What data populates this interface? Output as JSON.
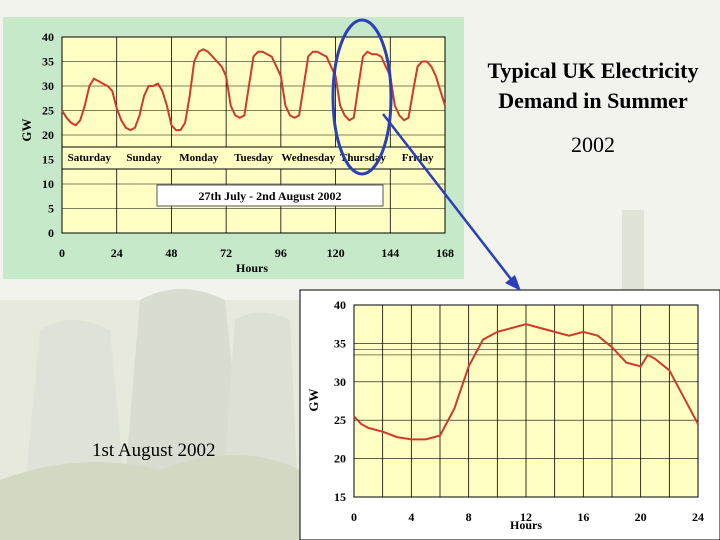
{
  "slide": {
    "title_line1": "Typical UK Electricity",
    "title_line2": "Demand in Summer",
    "year": "2002",
    "day_label": "1st August 2002"
  },
  "colors": {
    "plot_bg": "#ffffc4",
    "panel_bg": "#c6eac9",
    "line": "#d03a2a",
    "highlight": "#2b3fb8"
  },
  "chart_data": [
    {
      "type": "line",
      "title": "",
      "xlabel": "Hours",
      "ylabel": "GW",
      "xlim": [
        0,
        168
      ],
      "ylim": [
        0,
        40
      ],
      "xticks": [
        0,
        24,
        48,
        72,
        96,
        120,
        144,
        168
      ],
      "yticks": [
        0,
        5,
        10,
        15,
        20,
        25,
        30,
        35,
        40
      ],
      "grid": true,
      "day_labels": [
        "Saturday",
        "Sunday",
        "Monday",
        "Tuesday",
        "Wednesday",
        "Thursday",
        "Friday"
      ],
      "annotation": "27th July - 2nd August 2002",
      "series": [
        {
          "x": [
            0,
            2,
            4,
            6,
            8,
            10,
            12,
            14,
            16,
            18,
            20,
            22,
            24,
            26,
            28,
            30,
            32,
            34,
            36,
            38,
            40,
            42,
            44,
            46,
            48,
            50,
            52,
            54,
            56,
            58,
            60,
            62,
            64,
            66,
            68,
            70,
            72,
            74,
            76,
            78,
            80,
            82,
            84,
            86,
            88,
            90,
            92,
            94,
            96,
            98,
            100,
            102,
            104,
            106,
            108,
            110,
            112,
            114,
            116,
            118,
            120,
            122,
            124,
            126,
            128,
            130,
            132,
            134,
            136,
            138,
            140,
            142,
            144,
            146,
            148,
            150,
            152,
            154,
            156,
            158,
            160,
            162,
            164,
            166,
            168
          ],
          "y": [
            25,
            23.5,
            22.5,
            22,
            23,
            26,
            30,
            31.5,
            31,
            30.5,
            30,
            29,
            25.5,
            23,
            21.5,
            21,
            21.5,
            24,
            28,
            30,
            30,
            30.5,
            29,
            26,
            22,
            21,
            21,
            22.5,
            28,
            35,
            37,
            37.5,
            37,
            36,
            35,
            34,
            32,
            26,
            24,
            23.5,
            24,
            30,
            36,
            37,
            37,
            36.5,
            36,
            34,
            32,
            26,
            24,
            23.5,
            24,
            30,
            36,
            37,
            37,
            36.5,
            36,
            34,
            32,
            26,
            24,
            23,
            23.5,
            30,
            36,
            37,
            36.5,
            36.5,
            36,
            34,
            32,
            26,
            24,
            23,
            23.5,
            29,
            34,
            35,
            35,
            34,
            32,
            29,
            26
          ]
        }
      ]
    },
    {
      "type": "line",
      "title": "",
      "xlabel": "Hours",
      "ylabel": "GW",
      "xlim": [
        0,
        24
      ],
      "ylim": [
        15,
        40
      ],
      "xticks": [
        0,
        4,
        8,
        12,
        16,
        20,
        24
      ],
      "yticks": [
        15,
        20,
        25,
        30,
        35,
        40
      ],
      "grid": true,
      "series": [
        {
          "x": [
            0,
            0.5,
            1,
            2,
            3,
            4,
            5,
            6,
            7,
            8,
            9,
            10,
            11,
            12,
            13,
            14,
            15,
            16,
            17,
            18,
            19,
            20,
            20.5,
            21,
            22,
            23,
            24
          ],
          "y": [
            25.5,
            24.5,
            24,
            23.5,
            22.8,
            22.5,
            22.5,
            23,
            26.5,
            32,
            35.5,
            36.5,
            37,
            37.5,
            37,
            36.5,
            36,
            36.5,
            36,
            34.5,
            32.5,
            32,
            33.5,
            33,
            31.5,
            28,
            24.5
          ]
        }
      ]
    }
  ]
}
